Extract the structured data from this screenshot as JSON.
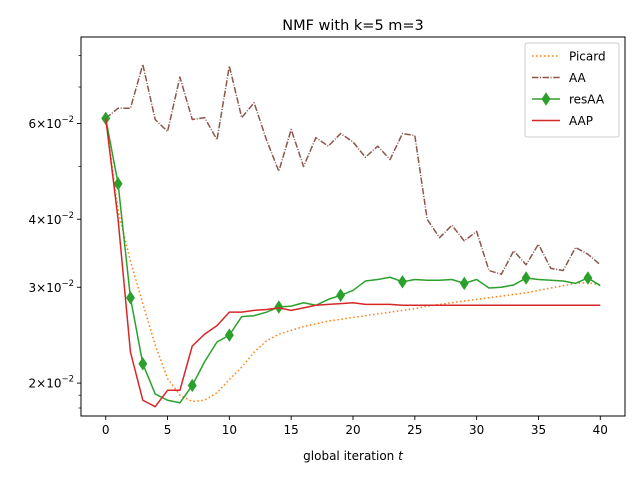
{
  "chart_data": {
    "type": "line",
    "title": "NMF with k=5 m=3",
    "xlabel": "global iteration",
    "xlabel_var": "t",
    "ylabel": "",
    "xlim": [
      -2,
      42
    ],
    "ylim": [
      0.0174,
      0.0865
    ],
    "yscale": "log",
    "xticks": [
      0,
      5,
      10,
      15,
      20,
      25,
      30,
      35,
      40
    ],
    "xtick_labels": [
      "0",
      "5",
      "10",
      "15",
      "20",
      "25",
      "30",
      "35",
      "40"
    ],
    "yticks": [
      0.02,
      0.03,
      0.04,
      0.06
    ],
    "ytick_labels": [
      {
        "mantissa": "2",
        "exponent": "−2"
      },
      {
        "mantissa": "3",
        "exponent": "−2"
      },
      {
        "mantissa": "4",
        "exponent": "−2"
      },
      {
        "mantissa": "6",
        "exponent": "−2"
      }
    ],
    "grid": false,
    "legend": {
      "position": "top-right"
    },
    "series": [
      {
        "name": "Picard",
        "color": "#ff7f0e",
        "style": "dotted",
        "x": [
          0,
          1,
          2,
          3,
          4,
          5,
          6,
          7,
          8,
          9,
          10,
          11,
          12,
          13,
          14,
          15,
          16,
          17,
          18,
          19,
          20,
          21,
          22,
          23,
          24,
          25,
          26,
          27,
          28,
          29,
          30,
          31,
          32,
          33,
          34,
          35,
          36,
          37,
          38,
          39,
          40
        ],
        "y": [
          0.0613,
          0.0415,
          0.0335,
          0.028,
          0.0235,
          0.0204,
          0.019,
          0.0185,
          0.0186,
          0.0192,
          0.0203,
          0.0214,
          0.0228,
          0.0239,
          0.0246,
          0.025,
          0.0254,
          0.0257,
          0.026,
          0.0262,
          0.0264,
          0.0266,
          0.0268,
          0.027,
          0.0272,
          0.0274,
          0.0277,
          0.0279,
          0.0281,
          0.0283,
          0.0285,
          0.0287,
          0.0289,
          0.0291,
          0.0293,
          0.0296,
          0.0299,
          0.0302,
          0.0305,
          0.0306,
          0.0303
        ]
      },
      {
        "name": "AA",
        "color": "#8c564b",
        "style": "dashdot",
        "x": [
          0,
          1,
          2,
          3,
          4,
          5,
          6,
          7,
          8,
          9,
          10,
          11,
          12,
          13,
          14,
          15,
          16,
          17,
          18,
          19,
          20,
          21,
          22,
          23,
          24,
          25,
          26,
          27,
          28,
          29,
          30,
          31,
          32,
          33,
          34,
          35,
          36,
          37,
          38,
          39,
          40
        ],
        "y": [
          0.0613,
          0.064,
          0.064,
          0.077,
          0.061,
          0.058,
          0.073,
          0.061,
          0.0615,
          0.056,
          0.0765,
          0.0615,
          0.0655,
          0.056,
          0.049,
          0.0585,
          0.05,
          0.0565,
          0.0545,
          0.0575,
          0.0555,
          0.052,
          0.0545,
          0.0515,
          0.0575,
          0.057,
          0.04,
          0.037,
          0.039,
          0.0365,
          0.038,
          0.0322,
          0.0317,
          0.035,
          0.033,
          0.036,
          0.0325,
          0.0322,
          0.0355,
          0.0345,
          0.033
        ]
      },
      {
        "name": "resAA",
        "color": "#2ca02c",
        "style": "solid-diamond",
        "x": [
          0,
          1,
          2,
          3,
          4,
          5,
          6,
          7,
          8,
          9,
          10,
          11,
          12,
          13,
          14,
          15,
          16,
          17,
          18,
          19,
          20,
          21,
          22,
          23,
          24,
          25,
          26,
          27,
          28,
          29,
          30,
          31,
          32,
          33,
          34,
          35,
          36,
          37,
          38,
          39,
          40
        ],
        "y": [
          0.0613,
          0.0465,
          0.0287,
          0.0217,
          0.0191,
          0.0186,
          0.0184,
          0.0198,
          0.0219,
          0.0238,
          0.0245,
          0.0265,
          0.0266,
          0.027,
          0.0276,
          0.0277,
          0.0281,
          0.0278,
          0.0285,
          0.029,
          0.0296,
          0.0308,
          0.031,
          0.0313,
          0.0307,
          0.031,
          0.0309,
          0.0309,
          0.031,
          0.0305,
          0.031,
          0.0299,
          0.03,
          0.0303,
          0.0312,
          0.031,
          0.0309,
          0.0308,
          0.0305,
          0.0312,
          0.0302
        ],
        "markers": [
          0,
          1,
          2,
          3,
          7,
          10,
          14,
          19,
          24,
          29,
          34,
          39
        ]
      },
      {
        "name": "AAP",
        "color": "#d62728",
        "style": "solid",
        "x": [
          0,
          1,
          2,
          3,
          4,
          5,
          6,
          7,
          8,
          9,
          10,
          11,
          12,
          13,
          14,
          15,
          16,
          17,
          18,
          19,
          20,
          21,
          22,
          23,
          24,
          25,
          26,
          27,
          28,
          29,
          30,
          31,
          32,
          33,
          34,
          35,
          36,
          37,
          38,
          39,
          40
        ],
        "y": [
          0.0613,
          0.04,
          0.0228,
          0.0186,
          0.0181,
          0.0194,
          0.0194,
          0.0234,
          0.0246,
          0.0255,
          0.027,
          0.027,
          0.0272,
          0.0273,
          0.0275,
          0.0272,
          0.0275,
          0.0278,
          0.0279,
          0.028,
          0.0281,
          0.0279,
          0.0279,
          0.0279,
          0.0278,
          0.0278,
          0.0278,
          0.0278,
          0.0278,
          0.0278,
          0.0278,
          0.0278,
          0.0278,
          0.0278,
          0.0278,
          0.0278,
          0.0278,
          0.0278,
          0.0278,
          0.0278,
          0.0278
        ]
      }
    ]
  }
}
